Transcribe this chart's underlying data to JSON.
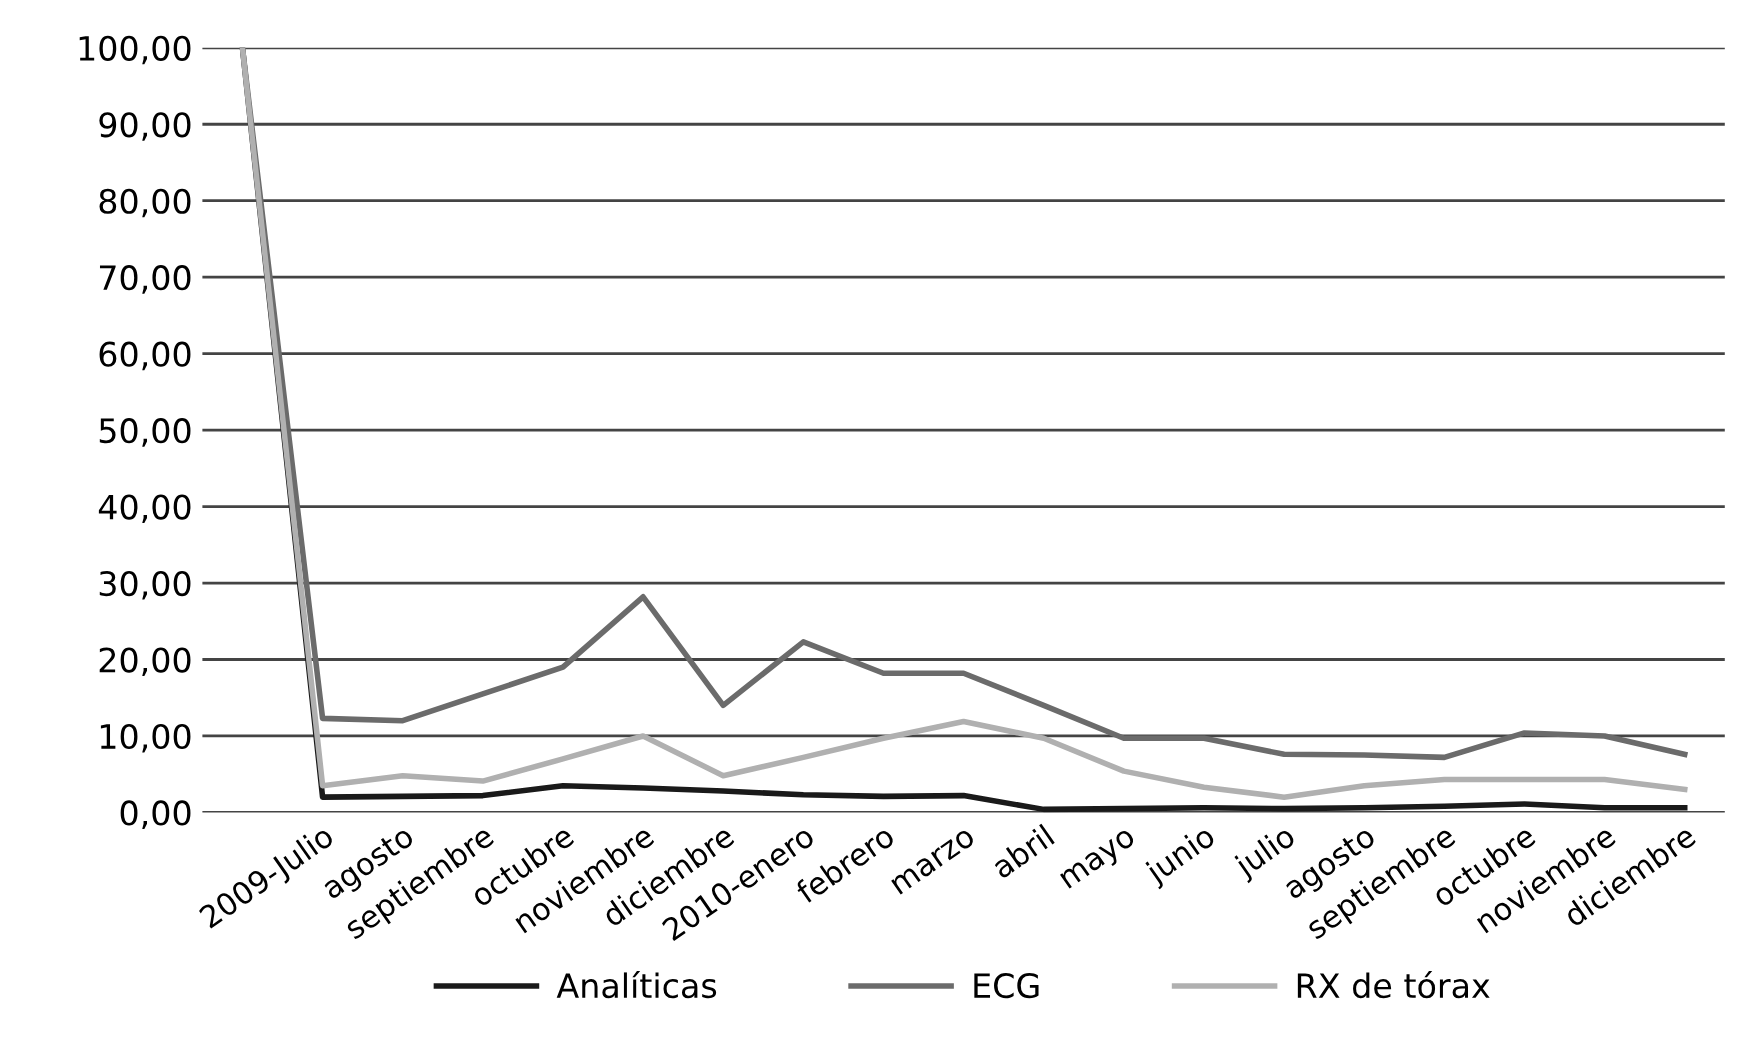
{
  "chart_data": {
    "type": "line",
    "categories": [
      null,
      "2009-Julio",
      "agosto",
      "septiembre",
      "octubre",
      "noviembre",
      "diciembre",
      "2010-enero",
      "febrero",
      "marzo",
      "abril",
      "mayo",
      "junio",
      "julio",
      "agosto",
      "septiembre",
      "octubre",
      "noviembre",
      "diciembre"
    ],
    "series": [
      {
        "name": "Analíticas",
        "color": "#1a1a1a",
        "values": [
          100,
          2.0,
          2.1,
          2.2,
          3.5,
          3.2,
          2.8,
          2.3,
          2.1,
          2.2,
          0.4,
          0.5,
          0.6,
          0.5,
          0.6,
          0.8,
          1.1,
          0.6,
          0.6
        ]
      },
      {
        "name": "ECG",
        "color": "#6b6b6b",
        "values": [
          100,
          12.3,
          12.0,
          15.5,
          19.0,
          28.2,
          14.0,
          22.3,
          18.2,
          18.2,
          14.0,
          9.7,
          9.7,
          7.6,
          7.5,
          7.2,
          10.4,
          10.0,
          7.6
        ]
      },
      {
        "name": "RX de tórax",
        "color": "#b0b0b0",
        "values": [
          100,
          3.5,
          4.8,
          4.1,
          7.0,
          10.0,
          4.8,
          7.2,
          9.7,
          11.9,
          9.7,
          5.4,
          3.3,
          2.0,
          3.5,
          4.3,
          4.3,
          4.3,
          3.0
        ]
      }
    ],
    "ylim": [
      0,
      100
    ],
    "yticks": [
      {
        "value": 0,
        "label": "0,00"
      },
      {
        "value": 10,
        "label": "10,00"
      },
      {
        "value": 20,
        "label": "20,00"
      },
      {
        "value": 30,
        "label": "30,00"
      },
      {
        "value": 40,
        "label": "40,00"
      },
      {
        "value": 50,
        "label": "50,00"
      },
      {
        "value": 60,
        "label": "60,00"
      },
      {
        "value": 70,
        "label": "70,00"
      },
      {
        "value": 80,
        "label": "80,00"
      },
      {
        "value": 90,
        "label": "90,00"
      },
      {
        "value": 100,
        "label": "100,00"
      }
    ],
    "grid": "y",
    "legend": "bottom",
    "marker": "none",
    "line_style": "solid"
  }
}
